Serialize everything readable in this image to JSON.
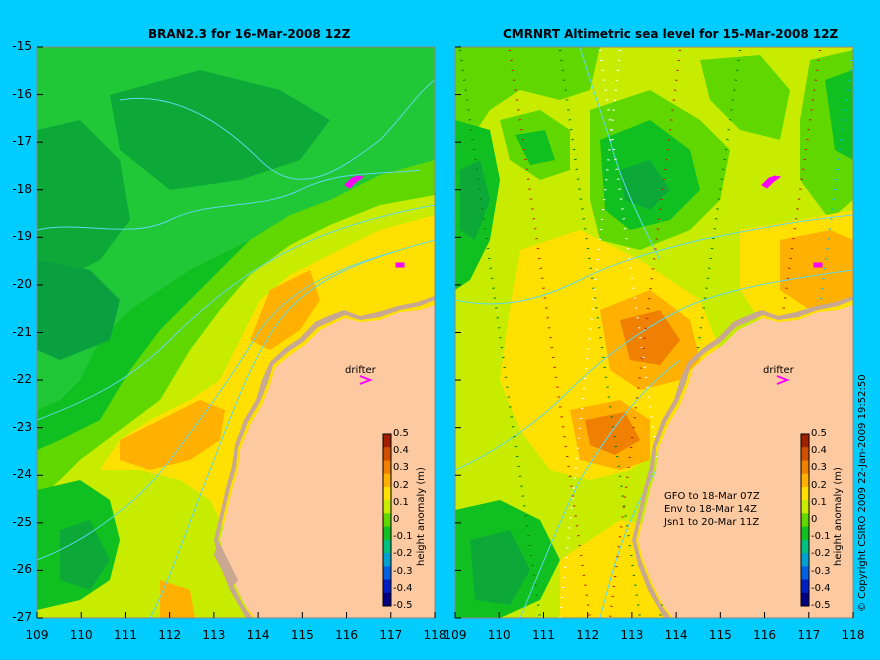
{
  "left_panel": {
    "title": "BRAN2.3 for 16-Mar-2008 12Z",
    "drifter_label": "drifter",
    "colorbar_title": "height anomaly (m)"
  },
  "right_panel": {
    "title": "CMRNRT Altimetric sea level  for 15-Mar-2008 12Z",
    "drifter_label": "drifter",
    "colorbar_title": "height anomaly (m)",
    "mission_info": [
      "GFO to 18-Mar 07Z",
      "Env to 18-Mar 14Z",
      "Jsn1 to 20-Mar 11Z"
    ]
  },
  "y_axis_labels": [
    "-15",
    "-16",
    "-17",
    "-18",
    "-19",
    "-20",
    "-21",
    "-22",
    "-23",
    "-24",
    "-25",
    "-26",
    "-27"
  ],
  "x_axis_labels": [
    "109",
    "110",
    "111",
    "112",
    "113",
    "114",
    "115",
    "116",
    "117",
    "118"
  ],
  "colorbar_ticks": [
    "0.5",
    "0.4",
    "0.3",
    "0.2",
    "0.1",
    "0",
    "-0.1",
    "-0.2",
    "-0.3",
    "-0.4",
    "-0.5"
  ],
  "colorbar_colors": [
    "#000080",
    "#0020c0",
    "#0060e0",
    "#00a0d0",
    "#00c080",
    "#10c020",
    "#60d800",
    "#c8ec00",
    "#ffe000",
    "#ffb000",
    "#f08000",
    "#d05000",
    "#a02000"
  ],
  "credit": "© Copyright CSIRO 2009   22-Jan-2009 19:52:50",
  "colors": {
    "background": "#00ccff",
    "land": "#fcc9a0",
    "coast": "#c8a890",
    "contour": "#5fd8e8",
    "drifter": "#ff00ff"
  }
}
